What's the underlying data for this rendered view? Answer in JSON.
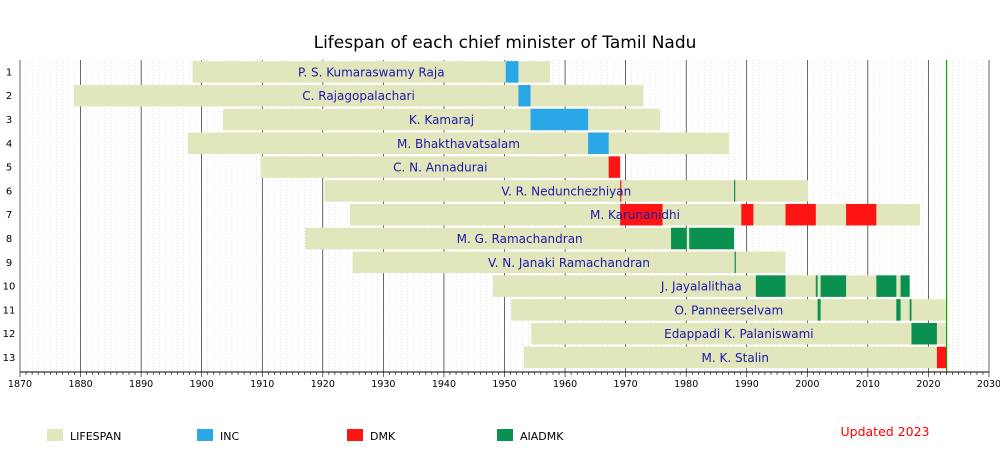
{
  "chart_data": {
    "type": "timeline",
    "title": "Lifespan of each chief minister of Tamil Nadu",
    "xlim": [
      1870,
      2030
    ],
    "x_ticks": [
      1870,
      1880,
      1890,
      1900,
      1910,
      1920,
      1930,
      1940,
      1950,
      1960,
      1970,
      1980,
      1990,
      2000,
      2010,
      2020,
      2030
    ],
    "current_year_marker": 2023,
    "colors": {
      "LIFESPAN": "#e2e6bc",
      "INC": "#2aa7e6",
      "DMK": "#ff1414",
      "AIADMK": "#0a9150"
    },
    "legend": [
      {
        "key": "LIFESPAN",
        "label": "LIFESPAN"
      },
      {
        "key": "INC",
        "label": "INC"
      },
      {
        "key": "DMK",
        "label": "DMK"
      },
      {
        "key": "AIADMK",
        "label": "AIADMK"
      }
    ],
    "note": "Updated 2023",
    "rows": [
      {
        "num": "1",
        "name": "P. S. Kumaraswamy Raja",
        "life": [
          1898.5,
          1957.5
        ],
        "terms": [
          {
            "party": "INC",
            "start": 1950.2,
            "end": 1952.3
          }
        ]
      },
      {
        "num": "2",
        "name": "C. Rajagopalachari",
        "life": [
          1878.9,
          1972.9
        ],
        "terms": [
          {
            "party": "INC",
            "start": 1952.3,
            "end": 1954.3
          }
        ]
      },
      {
        "num": "3",
        "name": "K. Kamaraj",
        "life": [
          1903.5,
          1975.7
        ],
        "terms": [
          {
            "party": "INC",
            "start": 1954.3,
            "end": 1963.8
          }
        ]
      },
      {
        "num": "4",
        "name": "M. Bhakthavatsalam",
        "life": [
          1897.7,
          1987.1
        ],
        "terms": [
          {
            "party": "INC",
            "start": 1963.8,
            "end": 1967.2
          }
        ]
      },
      {
        "num": "5",
        "name": "C. N. Annadurai",
        "life": [
          1909.7,
          1969.1
        ],
        "terms": [
          {
            "party": "DMK",
            "start": 1967.2,
            "end": 1969.1
          }
        ]
      },
      {
        "num": "6",
        "name": "V. R. Nedunchezhiyan",
        "life": [
          1920.3,
          2000.1
        ],
        "terms": [
          {
            "party": "DMK",
            "start": 1969.1,
            "end": 1969.2
          },
          {
            "party": "AIADMK",
            "start": 1987.9,
            "end": 1988.1
          }
        ]
      },
      {
        "num": "7",
        "name": "M. Karunanidhi",
        "life": [
          1924.5,
          2018.6
        ],
        "terms": [
          {
            "party": "DMK",
            "start": 1969.1,
            "end": 1976.1
          },
          {
            "party": "DMK",
            "start": 1989.1,
            "end": 1991.1
          },
          {
            "party": "DMK",
            "start": 1996.4,
            "end": 2001.4
          },
          {
            "party": "DMK",
            "start": 2006.4,
            "end": 2011.4
          }
        ]
      },
      {
        "num": "8",
        "name": "M. G. Ramachandran",
        "life": [
          1917.1,
          1987.9
        ],
        "terms": [
          {
            "party": "AIADMK",
            "start": 1977.5,
            "end": 1980.1
          },
          {
            "party": "AIADMK",
            "start": 1980.5,
            "end": 1987.9
          }
        ]
      },
      {
        "num": "9",
        "name": "V. N. Janaki Ramachandran",
        "life": [
          1924.9,
          1996.4
        ],
        "terms": [
          {
            "party": "AIADMK",
            "start": 1988.0,
            "end": 1988.1
          }
        ]
      },
      {
        "num": "10",
        "name": "J. Jayalalithaa",
        "life": [
          1948.1,
          2016.9
        ],
        "terms": [
          {
            "party": "AIADMK",
            "start": 1991.5,
            "end": 1996.4
          },
          {
            "party": "AIADMK",
            "start": 2001.4,
            "end": 2001.7
          },
          {
            "party": "AIADMK",
            "start": 2002.2,
            "end": 2006.4
          },
          {
            "party": "AIADMK",
            "start": 2011.4,
            "end": 2014.7
          },
          {
            "party": "AIADMK",
            "start": 2015.4,
            "end": 2016.9
          }
        ]
      },
      {
        "num": "11",
        "name": "O. Panneerselvam",
        "life": [
          1951.1,
          2023.0
        ],
        "terms": [
          {
            "party": "AIADMK",
            "start": 2001.7,
            "end": 2002.2
          },
          {
            "party": "AIADMK",
            "start": 2014.7,
            "end": 2015.4
          },
          {
            "party": "AIADMK",
            "start": 2016.9,
            "end": 2017.2
          }
        ]
      },
      {
        "num": "12",
        "name": "Edappadi K. Palaniswami",
        "life": [
          1954.4,
          2023.0
        ],
        "terms": [
          {
            "party": "AIADMK",
            "start": 2017.2,
            "end": 2021.4
          }
        ]
      },
      {
        "num": "13",
        "name": "M. K. Stalin",
        "life": [
          1953.2,
          2023.0
        ],
        "terms": [
          {
            "party": "DMK",
            "start": 2021.4,
            "end": 2023.0
          }
        ]
      }
    ]
  }
}
